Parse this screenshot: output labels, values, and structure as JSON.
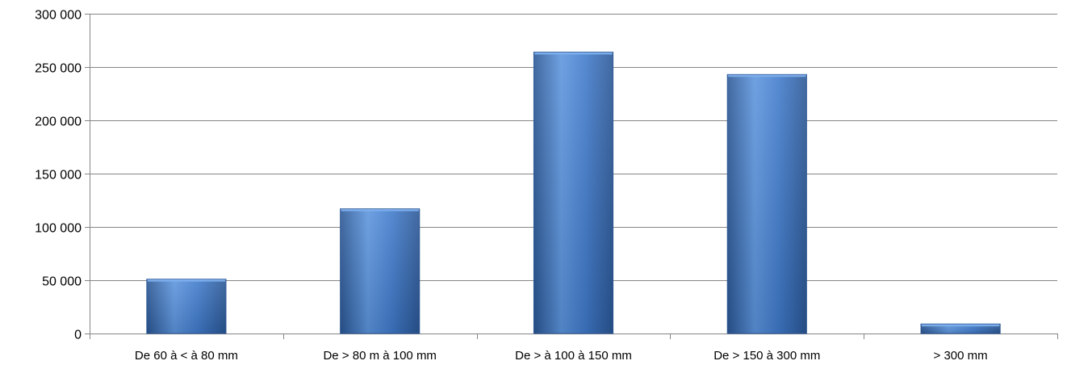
{
  "chart_data": {
    "type": "bar",
    "title": "",
    "xlabel": "",
    "ylabel": "",
    "categories": [
      "De 60 à < à 80 mm",
      "De > 80 m à 100 mm",
      "De > à 100 à 150 mm",
      "De > 150 à 300 mm",
      "> 300 mm"
    ],
    "values": [
      51000,
      117000,
      264000,
      243000,
      9000
    ],
    "ylim": [
      0,
      300000
    ],
    "yticks": [
      0,
      50000,
      100000,
      150000,
      200000,
      250000,
      300000
    ],
    "ytick_labels": [
      "0",
      "50 000",
      "100 000",
      "150 000",
      "200 000",
      "250 000",
      "300 000"
    ],
    "grid": true,
    "legend": "none",
    "colors": {
      "bar": "#3F7ACB",
      "bar_dark": "#2A5694",
      "bar_light": "#5C95DE",
      "grid": "#868686",
      "axis": "#868686"
    }
  }
}
